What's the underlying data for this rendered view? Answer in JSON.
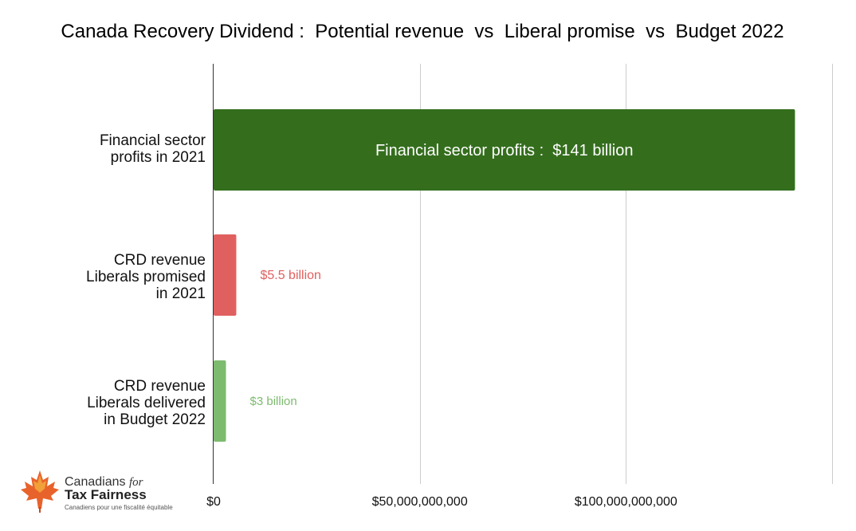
{
  "chart_data": {
    "type": "bar",
    "orientation": "horizontal",
    "title": "Canada Recovery Dividend :  Potential revenue  vs  Liberal promise  vs  Budget 2022",
    "categories": [
      "Financial sector\nprofits in 2021",
      "CRD revenue\nLiberals promised\nin 2021",
      "CRD revenue\nLiberals delivered\nin Budget 2022"
    ],
    "values": [
      141000000000,
      5500000000,
      3000000000
    ],
    "colors": [
      "#346e1d",
      "#e06060",
      "#7dbb6f"
    ],
    "data_labels": [
      "Financial sector profits :  $141 billion",
      "$5.5 billion",
      "$3 billion"
    ],
    "label_colors": [
      "#ffffff",
      "#e06060",
      "#7dbb6f"
    ],
    "xlim": [
      0,
      150000000000
    ],
    "xticks": [
      0,
      50000000000,
      100000000000,
      150000000000
    ],
    "xtick_labels": [
      "$0",
      "$50,000,000,000",
      "$100,000,000,000",
      ""
    ],
    "grid": true,
    "xlabel": "",
    "ylabel": ""
  },
  "logo": {
    "line1": "Canadians",
    "line1_italic": "for",
    "line2": "Tax Fairness",
    "line3": "Canadiens pour une fiscalité équitable"
  }
}
